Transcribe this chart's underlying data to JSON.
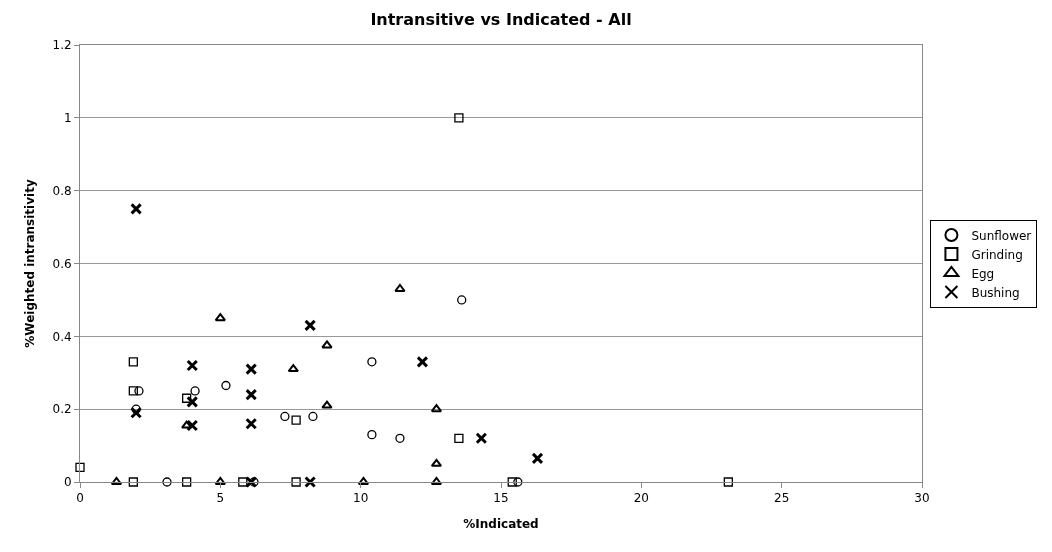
{
  "chart_data": {
    "type": "scatter",
    "title": "Intransitive vs Indicated - All",
    "xlabel": "%Indicated",
    "ylabel": "%Weighted intransitivity",
    "xlim": [
      0,
      30
    ],
    "xticks": [
      0,
      5,
      10,
      15,
      20,
      25,
      30
    ],
    "ylim": [
      0,
      1.2
    ],
    "yticks": [
      0,
      0.2,
      0.4,
      0.6,
      0.8,
      1,
      1.2
    ],
    "grid": "y",
    "legend": "right",
    "series": [
      {
        "name": "Sunflower",
        "color": "#000000",
        "marker": "circle",
        "x": [
          2.1,
          2.0,
          4.1,
          5.2,
          7.3,
          8.3,
          10.4,
          10.4,
          11.4,
          13.6,
          3.1,
          6.2,
          15.6
        ],
        "values": [
          0.25,
          0.2,
          0.25,
          0.265,
          0.18,
          0.18,
          0.33,
          0.13,
          0.12,
          0.5,
          0,
          0,
          0
        ]
      },
      {
        "name": "Grinding",
        "color": "#000000",
        "marker": "square",
        "x": [
          0,
          1.9,
          1.9,
          3.8,
          7.7,
          13.5,
          13.5,
          1.9,
          3.8,
          5.8,
          7.7,
          15.4,
          23.1
        ],
        "values": [
          0.04,
          0.33,
          0.25,
          0.23,
          0.17,
          1.0,
          0.12,
          0,
          0,
          0,
          0,
          0,
          0
        ]
      },
      {
        "name": "Egg",
        "color": "#000000",
        "marker": "triangle",
        "x": [
          5.0,
          11.4,
          8.8,
          7.6,
          8.8,
          12.7,
          3.8,
          12.7,
          1.3,
          5.0,
          10.1,
          12.7
        ],
        "values": [
          0.45,
          0.53,
          0.375,
          0.31,
          0.21,
          0.2,
          0.155,
          0.05,
          0,
          0,
          0,
          0
        ]
      },
      {
        "name": "Bushing",
        "color": "#000000",
        "marker": "cross",
        "x": [
          2.0,
          2.0,
          4.0,
          4.0,
          4.0,
          6.1,
          6.1,
          6.1,
          8.2,
          12.2,
          14.3,
          16.3,
          6.1,
          8.2
        ],
        "values": [
          0.75,
          0.19,
          0.32,
          0.22,
          0.155,
          0.31,
          0.24,
          0.16,
          0.43,
          0.33,
          0.12,
          0.065,
          0,
          0
        ]
      }
    ]
  }
}
